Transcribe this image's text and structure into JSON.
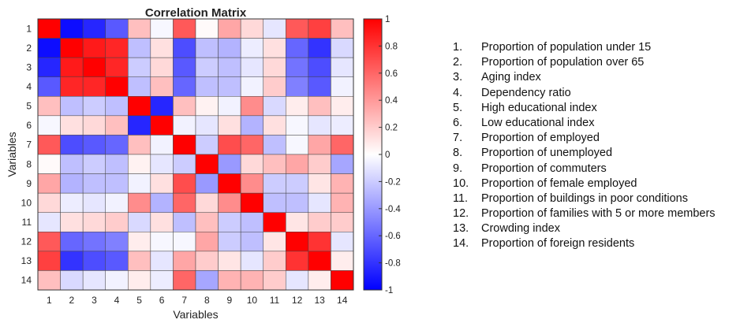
{
  "chart_data": {
    "type": "heatmap",
    "title": "Correlation Matrix",
    "xlabel": "Variables",
    "ylabel": "Variables",
    "categories": [
      "1",
      "2",
      "3",
      "4",
      "5",
      "6",
      "7",
      "8",
      "9",
      "10",
      "11",
      "12",
      "13",
      "14"
    ],
    "colorbar": {
      "min": -1,
      "max": 1,
      "ticks": [
        "-1",
        "-0.8",
        "-0.6",
        "-0.4",
        "-0.2",
        "0",
        "0.2",
        "0.4",
        "0.6",
        "0.8",
        "1"
      ],
      "colors": {
        "low": "#0000ff",
        "mid": "#ffffff",
        "high": "#ff0000"
      }
    },
    "matrix": [
      [
        1.0,
        -0.95,
        -0.85,
        -0.65,
        0.25,
        -0.03,
        0.65,
        0.02,
        0.35,
        0.15,
        -0.1,
        0.65,
        0.75,
        0.25
      ],
      [
        -0.95,
        1.0,
        0.9,
        0.85,
        -0.25,
        0.12,
        -0.7,
        -0.25,
        -0.3,
        -0.07,
        0.12,
        -0.6,
        -0.8,
        -0.15
      ],
      [
        -0.85,
        0.9,
        1.0,
        0.85,
        -0.2,
        0.15,
        -0.65,
        -0.2,
        -0.25,
        -0.1,
        0.15,
        -0.55,
        -0.7,
        -0.1
      ],
      [
        -0.65,
        0.85,
        0.85,
        1.0,
        -0.25,
        0.25,
        -0.6,
        -0.25,
        -0.25,
        -0.05,
        0.2,
        -0.5,
        -0.65,
        -0.05
      ],
      [
        0.25,
        -0.25,
        -0.2,
        -0.25,
        1.0,
        -0.85,
        0.25,
        0.05,
        -0.05,
        0.45,
        -0.15,
        0.07,
        0.25,
        0.07
      ],
      [
        -0.03,
        0.12,
        0.15,
        0.25,
        -0.85,
        1.0,
        -0.05,
        -0.1,
        0.12,
        -0.3,
        0.12,
        -0.03,
        -0.1,
        -0.07
      ],
      [
        0.65,
        -0.7,
        -0.65,
        -0.6,
        0.25,
        -0.05,
        1.0,
        -0.2,
        0.7,
        0.6,
        -0.25,
        -0.03,
        0.35,
        0.6
      ],
      [
        0.02,
        -0.25,
        -0.2,
        -0.25,
        0.05,
        -0.1,
        -0.2,
        1.0,
        -0.4,
        0.15,
        0.25,
        0.35,
        0.2,
        -0.35
      ],
      [
        0.35,
        -0.3,
        -0.25,
        -0.25,
        -0.05,
        0.12,
        0.7,
        -0.4,
        1.0,
        0.45,
        -0.2,
        -0.2,
        0.1,
        0.3
      ],
      [
        0.15,
        -0.07,
        -0.1,
        -0.05,
        0.45,
        -0.3,
        0.6,
        0.15,
        0.45,
        1.0,
        -0.25,
        -0.25,
        -0.1,
        0.3
      ],
      [
        -0.1,
        0.12,
        0.15,
        0.2,
        -0.15,
        0.12,
        -0.25,
        0.25,
        -0.2,
        -0.25,
        1.0,
        0.1,
        0.2,
        0.2
      ],
      [
        0.65,
        -0.6,
        -0.55,
        -0.5,
        0.07,
        -0.03,
        -0.03,
        0.35,
        -0.2,
        -0.25,
        0.1,
        1.0,
        0.8,
        -0.1
      ],
      [
        0.75,
        -0.8,
        -0.7,
        -0.65,
        0.25,
        -0.1,
        0.35,
        0.2,
        0.1,
        -0.1,
        0.2,
        0.8,
        1.0,
        0.07
      ],
      [
        0.25,
        -0.15,
        -0.1,
        -0.05,
        0.07,
        -0.07,
        0.6,
        -0.35,
        0.3,
        0.3,
        0.2,
        -0.1,
        0.07,
        1.0
      ]
    ]
  },
  "legend": {
    "items": [
      {
        "num": "1.",
        "label": "Proportion of population under 15"
      },
      {
        "num": "2.",
        "label": "Proportion of population over 65"
      },
      {
        "num": "3.",
        "label": "Aging index"
      },
      {
        "num": "4.",
        "label": "Dependency ratio"
      },
      {
        "num": "5.",
        "label": "High educational index"
      },
      {
        "num": "6.",
        "label": "Low educational index"
      },
      {
        "num": "7.",
        "label": "Proportion of employed"
      },
      {
        "num": "8.",
        "label": "Proportion of unemployed"
      },
      {
        "num": "9.",
        "label": "Proportion of commuters"
      },
      {
        "num": "10.",
        "label": "Proportion of female employed"
      },
      {
        "num": "11.",
        "label": "Proportion of buildings in poor conditions"
      },
      {
        "num": "12.",
        "label": "Proportion of families with 5 or more members"
      },
      {
        "num": "13.",
        "label": "Crowding index"
      },
      {
        "num": "14.",
        "label": "Proportion of foreign residents"
      }
    ]
  }
}
